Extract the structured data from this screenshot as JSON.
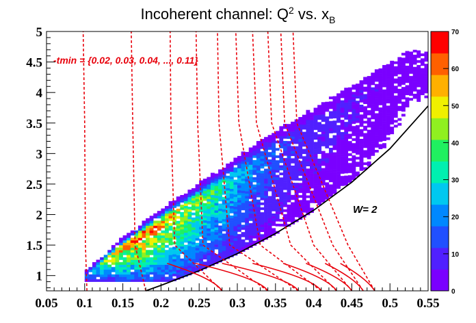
{
  "chart_data": {
    "type": "heatmap",
    "title": "Incoherent channel: Q",
    "title_sup": "2",
    "title_mid": " vs. x",
    "title_sub": "B",
    "xlabel": "",
    "ylabel": "",
    "xlim": [
      0.05,
      0.55
    ],
    "ylim": [
      0.75,
      5.0
    ],
    "x_ticks": [
      0.05,
      0.1,
      0.15,
      0.2,
      0.25,
      0.3,
      0.35,
      0.4,
      0.45,
      0.5,
      0.55
    ],
    "x_tick_labels": [
      "0.05",
      "0.1",
      "0.15",
      "0.2",
      "0.25",
      "0.3",
      "0.35",
      "0.4",
      "0.45",
      "0.5",
      "0.55"
    ],
    "y_ticks": [
      1,
      1.5,
      2,
      2.5,
      3,
      3.5,
      4,
      4.5,
      5
    ],
    "y_tick_labels": [
      "1",
      "1.5",
      "2",
      "2.5",
      "3",
      "3.5",
      "4",
      "4.5",
      "5"
    ],
    "z_range": [
      0,
      70
    ],
    "z_ticks": [
      0,
      10,
      20,
      30,
      40,
      50,
      60,
      70
    ],
    "z_tick_labels": [
      "0",
      "10",
      "20",
      "30",
      "40",
      "50",
      "60",
      "70"
    ],
    "colorbar_position": "right",
    "grid": false,
    "density_ridge": [
      {
        "x": 0.1,
        "q2": 1.0,
        "z": 20
      },
      {
        "x": 0.14,
        "q2": 1.4,
        "z": 52
      },
      {
        "x": 0.17,
        "q2": 1.65,
        "z": 62
      },
      {
        "x": 0.2,
        "q2": 1.9,
        "z": 52
      },
      {
        "x": 0.24,
        "q2": 2.2,
        "z": 42
      },
      {
        "x": 0.28,
        "q2": 2.5,
        "z": 32
      },
      {
        "x": 0.32,
        "q2": 2.85,
        "z": 20
      },
      {
        "x": 0.38,
        "q2": 3.3,
        "z": 10
      },
      {
        "x": 0.46,
        "q2": 3.9,
        "z": 6
      },
      {
        "x": 0.52,
        "q2": 4.4,
        "z": 3
      }
    ],
    "curves": [
      {
        "name": "W=2",
        "type": "line",
        "color": "#000000",
        "style": "solid",
        "x": [
          0.18,
          0.2,
          0.25,
          0.3,
          0.35,
          0.4,
          0.45,
          0.5,
          0.55
        ],
        "y": [
          0.75,
          0.84,
          1.08,
          1.36,
          1.69,
          2.07,
          2.53,
          3.08,
          3.78
        ]
      },
      {
        "name": "tmin=0.02",
        "color": "#e8000b",
        "style": "dashed",
        "x": [
          0.103,
          0.101,
          0.1,
          0.098
        ],
        "y": [
          0.75,
          1.5,
          3.5,
          5.0
        ]
      },
      {
        "name": "tmin=0.03",
        "color": "#e8000b",
        "style": "dashed",
        "x": [
          0.18,
          0.166,
          0.163,
          0.161
        ],
        "y": [
          0.75,
          1.5,
          3.5,
          5.0
        ]
      },
      {
        "name": "tmin=0.04",
        "color": "#e8000b",
        "style": "dashed",
        "x": [
          0.28,
          0.218,
          0.213,
          0.212
        ],
        "y": [
          0.75,
          1.5,
          3.5,
          5.0
        ]
      },
      {
        "name": "tmin=0.05",
        "color": "#e8000b",
        "style": "dashed",
        "x": [
          0.34,
          0.255,
          0.248,
          0.246
        ],
        "y": [
          0.75,
          1.5,
          3.5,
          5.0
        ]
      },
      {
        "name": "tmin=0.06",
        "color": "#e8000b",
        "style": "dashed",
        "x": [
          0.38,
          0.29,
          0.276,
          0.274
        ],
        "y": [
          0.75,
          1.5,
          3.5,
          5.0
        ]
      },
      {
        "name": "tmin=0.07",
        "color": "#e8000b",
        "style": "dashed",
        "x": [
          0.41,
          0.33,
          0.302,
          0.298
        ],
        "y": [
          0.75,
          1.5,
          3.5,
          5.0
        ]
      },
      {
        "name": "tmin=0.08",
        "color": "#e8000b",
        "style": "dashed",
        "x": [
          0.43,
          0.37,
          0.325,
          0.32
        ],
        "y": [
          0.75,
          1.5,
          3.5,
          5.0
        ]
      },
      {
        "name": "tmin=0.09",
        "color": "#e8000b",
        "style": "dashed",
        "x": [
          0.45,
          0.4,
          0.345,
          0.34
        ],
        "y": [
          0.75,
          1.5,
          3.5,
          5.0
        ]
      },
      {
        "name": "tmin=0.10",
        "color": "#e8000b",
        "style": "dashed",
        "x": [
          0.465,
          0.425,
          0.362,
          0.357
        ],
        "y": [
          0.75,
          1.5,
          3.5,
          5.0
        ]
      },
      {
        "name": "tmin=0.11",
        "color": "#e8000b",
        "style": "dashed",
        "x": [
          0.48,
          0.445,
          0.378,
          0.373
        ],
        "y": [
          0.75,
          1.5,
          3.5,
          5.0
        ]
      }
    ],
    "annotations": [
      {
        "text": "-tmin = {0.02, 0.03, 0.04, ..., 0.11}",
        "color": "#e8000b"
      },
      {
        "text": "W= 2",
        "color": "#000000"
      }
    ]
  },
  "colors": {
    "palette": [
      "#7a00ff",
      "#5020ff",
      "#2050ff",
      "#0088ff",
      "#00c8f0",
      "#00f0b0",
      "#20f060",
      "#90f020",
      "#f0f000",
      "#ffb000",
      "#ff6000",
      "#ff0000"
    ],
    "curve_red": "#e8000b"
  }
}
